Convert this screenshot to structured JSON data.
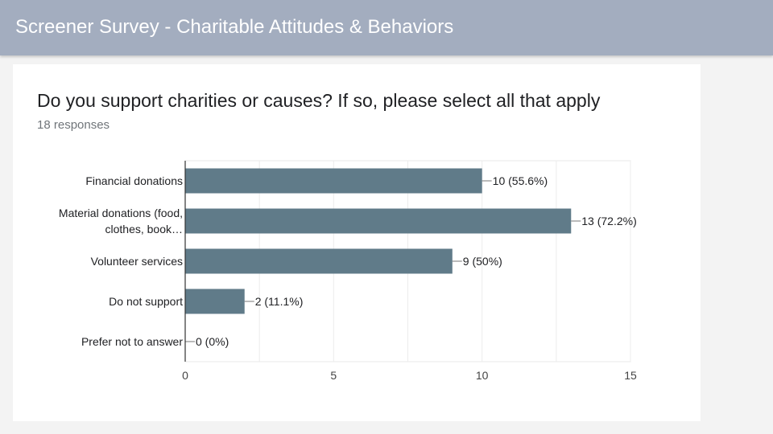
{
  "header": {
    "title": "Screener Survey - Charitable Attitudes & Behaviors"
  },
  "question": {
    "title": "Do you support charities or causes? If so, please select all that apply",
    "responses": "18 responses"
  },
  "colors": {
    "bar": "#607b89",
    "header_bg": "#a3adbf"
  },
  "chart_data": {
    "type": "bar",
    "orientation": "horizontal",
    "categories": [
      [
        "Financial donations"
      ],
      [
        "Material donations (food,",
        "clothes, book…"
      ],
      [
        "Volunteer services"
      ],
      [
        "Do not support"
      ],
      [
        "Prefer not to answer"
      ]
    ],
    "values": [
      10,
      13,
      9,
      2,
      0
    ],
    "value_labels": [
      "10 (55.6%)",
      "13 (72.2%)",
      "9 (50%)",
      "2 (11.1%)",
      "0 (0%)"
    ],
    "xlim": [
      0,
      15
    ],
    "xticks": [
      0,
      5,
      10,
      15
    ],
    "grid": true,
    "legend": "none"
  }
}
